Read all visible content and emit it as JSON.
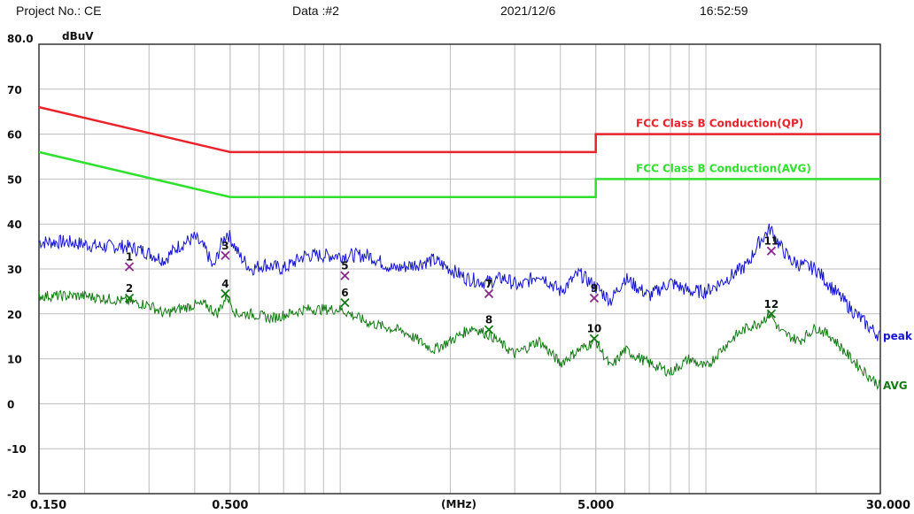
{
  "header": {
    "project": "Project No.: CE",
    "data_no": "Data :#2",
    "date": "2021/12/6",
    "time": "16:52:59"
  },
  "chart_data": {
    "type": "line",
    "title": "",
    "ylabel": "dBuV",
    "xlabel": "(MHz)",
    "xscale": "log",
    "xlim": [
      0.15,
      30
    ],
    "ylim": [
      -20,
      80
    ],
    "grid": true,
    "y_ticks": [
      {
        "value": 80,
        "label": "80.0"
      },
      {
        "value": 70,
        "label": "70"
      },
      {
        "value": 60,
        "label": "60"
      },
      {
        "value": 50,
        "label": "50"
      },
      {
        "value": 40,
        "label": "40"
      },
      {
        "value": 30,
        "label": "30"
      },
      {
        "value": 20,
        "label": "20"
      },
      {
        "value": 10,
        "label": "10"
      },
      {
        "value": 0,
        "label": "0"
      },
      {
        "value": -10,
        "label": "-10"
      },
      {
        "value": -20,
        "label": "-20"
      }
    ],
    "x_ticks": [
      {
        "value": 0.15,
        "label": "0.150"
      },
      {
        "value": 0.5,
        "label": "0.500"
      },
      {
        "value": 5,
        "label": "5.000"
      },
      {
        "value": 30,
        "label": "30.000"
      }
    ],
    "limit_lines": [
      {
        "name": "FCC Class B Conduction(QP)",
        "color": "#e8232b",
        "x": [
          0.15,
          0.5,
          5,
          5,
          30
        ],
        "y": [
          66,
          56,
          56,
          60,
          60
        ]
      },
      {
        "name": "FCC Class B Conduction(AVG)",
        "color": "#2fe02f",
        "x": [
          0.15,
          0.5,
          5,
          5,
          30
        ],
        "y": [
          56,
          46,
          46,
          50,
          50
        ]
      }
    ],
    "series": [
      {
        "name": "peak",
        "color": "#1515d0",
        "x": [
          0.15,
          0.18,
          0.22,
          0.26,
          0.29,
          0.31,
          0.33,
          0.36,
          0.4,
          0.43,
          0.45,
          0.47,
          0.49,
          0.5,
          0.53,
          0.57,
          0.62,
          0.7,
          0.8,
          0.9,
          1.0,
          1.2,
          1.4,
          1.6,
          1.8,
          2.0,
          2.2,
          2.5,
          2.8,
          3.1,
          3.5,
          4.0,
          4.5,
          5.0,
          5.5,
          6.0,
          7.0,
          8.0,
          9.0,
          10.0,
          11.0,
          12.0,
          13.0,
          14.0,
          15.0,
          16.0,
          17.0,
          18.0,
          20.0,
          22.0,
          25.0,
          28.0,
          30.0
        ],
        "y": [
          36,
          36,
          35,
          35,
          34,
          33,
          32,
          35,
          37,
          34,
          30,
          35,
          38,
          37,
          33,
          30,
          31,
          30,
          33,
          33,
          33,
          33,
          30,
          31,
          32,
          30,
          28,
          27,
          28,
          26,
          29,
          25,
          29,
          26,
          23,
          28,
          24,
          27,
          25,
          25,
          27,
          29,
          31,
          36,
          39,
          35,
          32,
          31,
          30,
          26,
          21,
          17,
          15
        ]
      },
      {
        "name": "AVG",
        "color": "#157a15",
        "x": [
          0.15,
          0.2,
          0.25,
          0.3,
          0.33,
          0.36,
          0.4,
          0.43,
          0.46,
          0.49,
          0.52,
          0.57,
          0.65,
          0.8,
          1.0,
          1.2,
          1.5,
          1.8,
          2.0,
          2.3,
          2.6,
          3.0,
          3.5,
          4.0,
          4.5,
          5.0,
          5.5,
          6.0,
          7.0,
          8.0,
          9.0,
          10.0,
          11.0,
          12.0,
          13.0,
          14.0,
          15.0,
          16.0,
          18.0,
          20.0,
          22.0,
          25.0,
          28.0,
          30.0
        ],
        "y": [
          24,
          24,
          23,
          22,
          20,
          21,
          22,
          22,
          20,
          24,
          20,
          20,
          19,
          21,
          21,
          18,
          16,
          12,
          14,
          17,
          15,
          11,
          14,
          9,
          12,
          14,
          8,
          12,
          9,
          7,
          10,
          8,
          12,
          15,
          17,
          18,
          20,
          16,
          14,
          17,
          15,
          10,
          6,
          4
        ]
      }
    ],
    "markers": [
      {
        "label": "1",
        "x": 0.265,
        "y": 30.5,
        "kind": "x",
        "color": "#8b2a8b"
      },
      {
        "label": "2",
        "x": 0.265,
        "y": 23.5,
        "kind": "x",
        "color": "#157a15"
      },
      {
        "label": "3",
        "x": 0.485,
        "y": 33.0,
        "kind": "x",
        "color": "#8b2a8b"
      },
      {
        "label": "4",
        "x": 0.485,
        "y": 24.5,
        "kind": "x",
        "color": "#157a15"
      },
      {
        "label": "5",
        "x": 1.03,
        "y": 28.5,
        "kind": "x",
        "color": "#8b2a8b"
      },
      {
        "label": "6",
        "x": 1.03,
        "y": 22.5,
        "kind": "x",
        "color": "#157a15"
      },
      {
        "label": "7",
        "x": 2.55,
        "y": 24.5,
        "kind": "x",
        "color": "#8b2a8b"
      },
      {
        "label": "8",
        "x": 2.55,
        "y": 16.5,
        "kind": "x",
        "color": "#157a15"
      },
      {
        "label": "9",
        "x": 4.95,
        "y": 23.5,
        "kind": "x",
        "color": "#8b2a8b"
      },
      {
        "label": "10",
        "x": 4.95,
        "y": 14.5,
        "kind": "x",
        "color": "#157a15"
      },
      {
        "label": "11",
        "x": 15.1,
        "y": 34.0,
        "kind": "x",
        "color": "#8b2a8b"
      },
      {
        "label": "12",
        "x": 15.1,
        "y": 20.0,
        "kind": "x",
        "color": "#157a15"
      }
    ]
  }
}
